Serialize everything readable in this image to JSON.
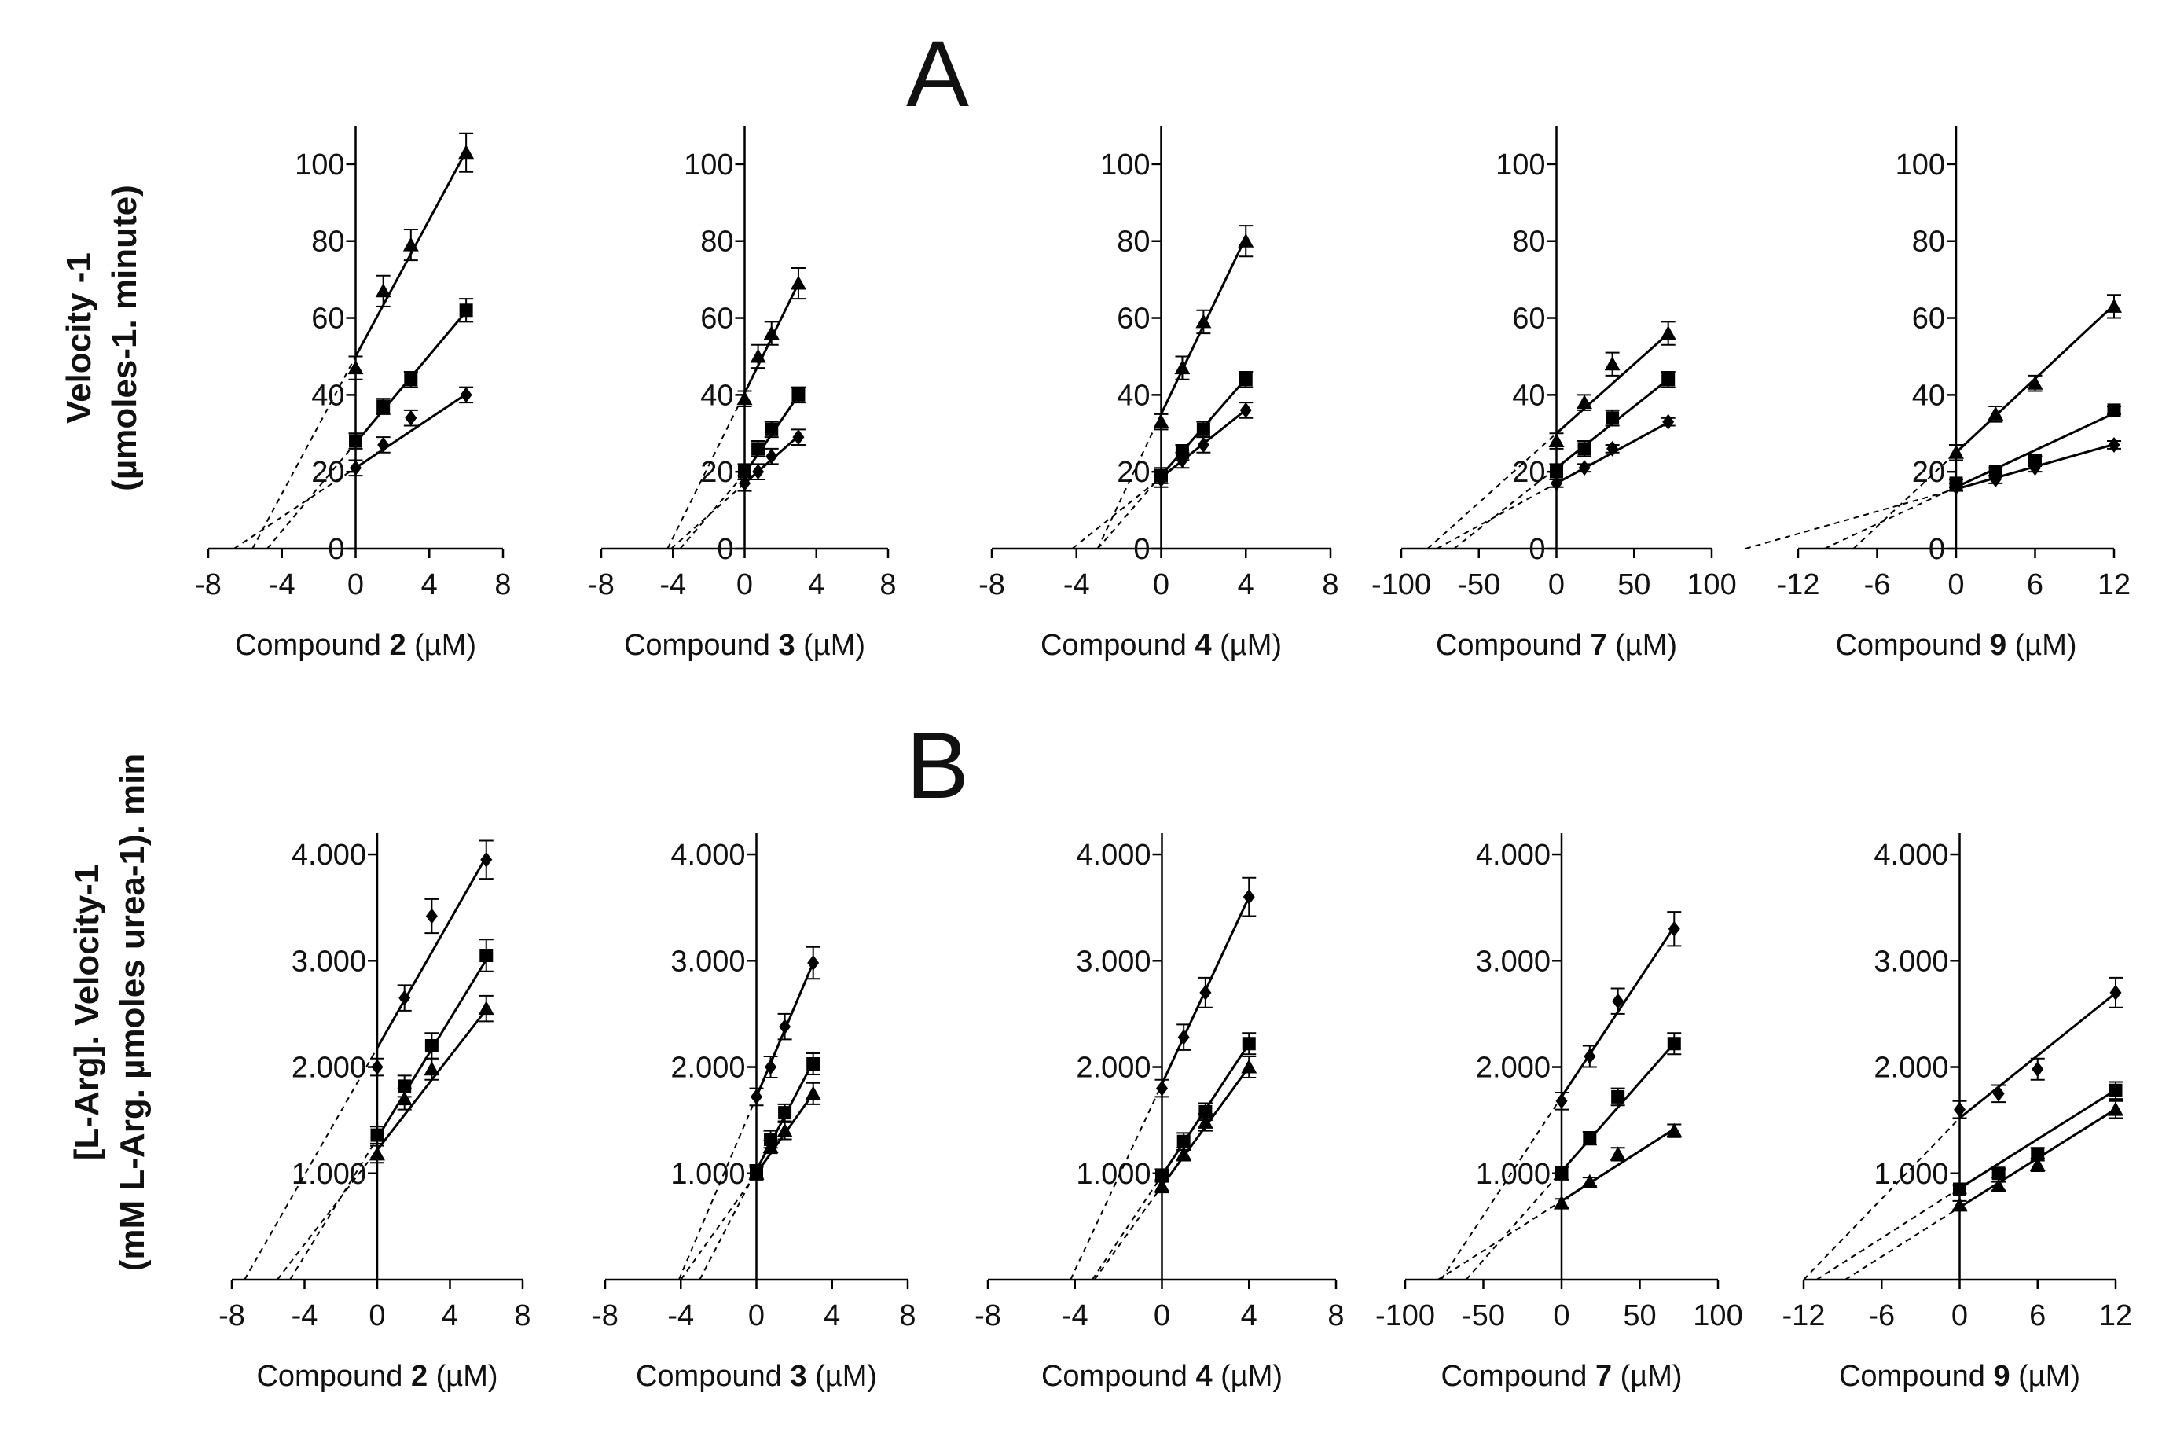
{
  "panels": {
    "A": {
      "letter": "A",
      "ylabel_line1": "Velocity -1",
      "ylabel_line2": "(µmoles-1. minute)"
    },
    "B": {
      "letter": "B",
      "ylabel_line1": "[L-Arg]. Velocity-1",
      "ylabel_line2": "(mM L-Arg. µmoles urea-1). min"
    }
  },
  "chart_data": [
    {
      "type": "line",
      "panel": "A",
      "title": "",
      "xlabel": {
        "prefix": "Compound ",
        "num": "2",
        "suffix": " (µM)"
      },
      "xlim": [
        -8,
        8
      ],
      "ylim": [
        0,
        110
      ],
      "xticks": [
        -8,
        -4,
        0,
        4,
        8
      ],
      "xtick_labels": [
        "-8",
        "-4",
        "0",
        "4",
        "8"
      ],
      "yticks": [
        0,
        20,
        40,
        60,
        80,
        100
      ],
      "ytick_labels": [
        "0",
        "20",
        "40",
        "60",
        "80",
        "100"
      ],
      "x": [
        0,
        1.5,
        3,
        6
      ],
      "series": [
        {
          "marker": "triangle",
          "values": [
            47,
            67,
            79,
            103
          ],
          "errors": [
            3,
            4,
            4,
            5
          ],
          "fit": [
            50,
            8.9
          ],
          "x_intercept": -5.6
        },
        {
          "marker": "square",
          "values": [
            28,
            37,
            44,
            62
          ],
          "errors": [
            2,
            2,
            2,
            3
          ],
          "fit": [
            27.5,
            5.7
          ],
          "x_intercept": -4.8
        },
        {
          "marker": "diamond",
          "values": [
            21,
            27,
            34,
            40
          ],
          "errors": [
            2,
            2,
            2,
            2
          ],
          "fit": [
            21,
            3.2
          ],
          "x_intercept": -6.6
        }
      ]
    },
    {
      "type": "line",
      "panel": "A",
      "title": "",
      "xlabel": {
        "prefix": "Compound ",
        "num": "3",
        "suffix": " (µM)"
      },
      "xlim": [
        -8,
        8
      ],
      "ylim": [
        0,
        110
      ],
      "xticks": [
        -8,
        -4,
        0,
        4,
        8
      ],
      "xtick_labels": [
        "-8",
        "-4",
        "0",
        "4",
        "8"
      ],
      "yticks": [
        0,
        20,
        40,
        60,
        80,
        100
      ],
      "ytick_labels": [
        "0",
        "20",
        "40",
        "60",
        "80",
        "100"
      ],
      "x": [
        0,
        0.75,
        1.5,
        3
      ],
      "series": [
        {
          "marker": "triangle",
          "values": [
            39,
            50,
            56,
            69
          ],
          "errors": [
            2,
            3,
            3,
            4
          ],
          "fit": [
            40.5,
            9.5
          ],
          "x_intercept": -4.3
        },
        {
          "marker": "square",
          "values": [
            20,
            26,
            31,
            40
          ],
          "errors": [
            2,
            2,
            2,
            2
          ],
          "fit": [
            19.5,
            6.8
          ],
          "x_intercept": -3.6
        },
        {
          "marker": "diamond",
          "values": [
            17,
            20,
            24,
            29
          ],
          "errors": [
            2,
            2,
            2,
            2
          ],
          "fit": [
            17,
            4.1
          ],
          "x_intercept": -4.1
        }
      ]
    },
    {
      "type": "line",
      "panel": "A",
      "title": "",
      "xlabel": {
        "prefix": "Compound ",
        "num": "4",
        "suffix": " (µM)"
      },
      "xlim": [
        -8,
        8
      ],
      "ylim": [
        0,
        110
      ],
      "xticks": [
        -8,
        -4,
        0,
        4,
        8
      ],
      "xtick_labels": [
        "-8",
        "-4",
        "0",
        "4",
        "8"
      ],
      "yticks": [
        0,
        20,
        40,
        60,
        80,
        100
      ],
      "ytick_labels": [
        "0",
        "20",
        "40",
        "60",
        "80",
        "100"
      ],
      "x": [
        0,
        1,
        2,
        4
      ],
      "series": [
        {
          "marker": "triangle",
          "values": [
            33,
            47,
            59,
            80
          ],
          "errors": [
            2,
            3,
            3,
            4
          ],
          "fit": [
            35,
            11.5
          ],
          "x_intercept": -3.0
        },
        {
          "marker": "square",
          "values": [
            19,
            25,
            31,
            44
          ],
          "errors": [
            2,
            2,
            2,
            2
          ],
          "fit": [
            19,
            6.3
          ],
          "x_intercept": -3.0
        },
        {
          "marker": "diamond",
          "values": [
            18,
            23,
            27,
            36
          ],
          "errors": [
            2,
            2,
            2,
            2
          ],
          "fit": [
            18.5,
            4.4
          ],
          "x_intercept": -4.2
        }
      ]
    },
    {
      "type": "line",
      "panel": "A",
      "title": "",
      "xlabel": {
        "prefix": "Compound ",
        "num": "7",
        "suffix": " (µM)"
      },
      "xlim": [
        -100,
        100
      ],
      "ylim": [
        0,
        110
      ],
      "xticks": [
        -100,
        -50,
        0,
        50,
        100
      ],
      "xtick_labels": [
        "-100",
        "-50",
        "0",
        "50",
        "100"
      ],
      "yticks": [
        0,
        20,
        40,
        60,
        80,
        100
      ],
      "ytick_labels": [
        "0",
        "20",
        "40",
        "60",
        "80",
        "100"
      ],
      "x": [
        0,
        18,
        36,
        72
      ],
      "series": [
        {
          "marker": "triangle",
          "values": [
            28,
            38,
            48,
            56
          ],
          "errors": [
            2,
            2,
            3,
            3
          ],
          "fit": [
            30,
            0.36
          ],
          "x_intercept": -83
        },
        {
          "marker": "square",
          "values": [
            20,
            26,
            34,
            44
          ],
          "errors": [
            2,
            2,
            2,
            2
          ],
          "fit": [
            21,
            0.32
          ],
          "x_intercept": -66
        },
        {
          "marker": "diamond",
          "values": [
            17,
            21,
            26,
            33
          ],
          "errors": [
            1,
            1,
            1,
            1
          ],
          "fit": [
            17,
            0.22
          ],
          "x_intercept": -77
        }
      ]
    },
    {
      "type": "line",
      "panel": "A",
      "title": "",
      "xlabel": {
        "prefix": "Compound ",
        "num": "9",
        "suffix": " (µM)"
      },
      "xlim": [
        -12,
        12
      ],
      "ylim": [
        0,
        110
      ],
      "xticks": [
        -12,
        -6,
        0,
        6,
        12
      ],
      "xtick_labels": [
        "-12",
        "-6",
        "0",
        "6",
        "12"
      ],
      "yticks": [
        0,
        20,
        40,
        60,
        80,
        100
      ],
      "ytick_labels": [
        "0",
        "20",
        "40",
        "60",
        "80",
        "100"
      ],
      "x": [
        0,
        3,
        6,
        12
      ],
      "series": [
        {
          "marker": "triangle",
          "values": [
            25,
            35,
            43,
            63
          ],
          "errors": [
            2,
            2,
            2,
            3
          ],
          "fit": [
            25,
            3.2
          ],
          "x_intercept": -7.8
        },
        {
          "marker": "square",
          "values": [
            17,
            20,
            23,
            36
          ],
          "errors": [
            1,
            1,
            1,
            1
          ],
          "fit": [
            16,
            1.6
          ],
          "x_intercept": -10
        },
        {
          "marker": "diamond",
          "values": [
            16,
            18,
            21,
            27
          ],
          "errors": [
            1,
            1,
            1,
            1
          ],
          "fit": [
            15.5,
            0.97
          ],
          "x_intercept": -16
        }
      ]
    },
    {
      "type": "line",
      "panel": "B",
      "title": "",
      "xlabel": {
        "prefix": "Compound ",
        "num": "2",
        "suffix": " (µM)"
      },
      "xlim": [
        -8,
        8
      ],
      "ylim": [
        0,
        4.2
      ],
      "xticks": [
        -8,
        -4,
        0,
        4,
        8
      ],
      "xtick_labels": [
        "-8",
        "-4",
        "0",
        "4",
        "8"
      ],
      "yticks": [
        1,
        2,
        3,
        4
      ],
      "ytick_labels": [
        "1.000",
        "2.000",
        "3.000",
        "4.000"
      ],
      "x": [
        0,
        1.5,
        3,
        6
      ],
      "series": [
        {
          "marker": "diamond",
          "values": [
            2.0,
            2.65,
            3.42,
            3.95
          ],
          "errors": [
            0.08,
            0.12,
            0.16,
            0.18
          ],
          "fit": [
            2.18,
            0.3
          ],
          "x_intercept": -7.3
        },
        {
          "marker": "square",
          "values": [
            1.36,
            1.82,
            2.2,
            3.05
          ],
          "errors": [
            0.08,
            0.1,
            0.12,
            0.15
          ],
          "fit": [
            1.33,
            0.28
          ],
          "x_intercept": -4.8
        },
        {
          "marker": "triangle",
          "values": [
            1.18,
            1.7,
            1.98,
            2.55
          ],
          "errors": [
            0.08,
            0.1,
            0.1,
            0.12
          ],
          "fit": [
            1.22,
            0.22
          ],
          "x_intercept": -5.5
        }
      ]
    },
    {
      "type": "line",
      "panel": "B",
      "title": "",
      "xlabel": {
        "prefix": "Compound ",
        "num": "3",
        "suffix": " (µM)"
      },
      "xlim": [
        -8,
        8
      ],
      "ylim": [
        0,
        4.2
      ],
      "xticks": [
        -8,
        -4,
        0,
        4,
        8
      ],
      "xtick_labels": [
        "-8",
        "-4",
        "0",
        "4",
        "8"
      ],
      "yticks": [
        1,
        2,
        3,
        4
      ],
      "ytick_labels": [
        "1.000",
        "2.000",
        "3.000",
        "4.000"
      ],
      "x": [
        0,
        0.75,
        1.5,
        3
      ],
      "series": [
        {
          "marker": "diamond",
          "values": [
            1.72,
            2.0,
            2.38,
            2.98
          ],
          "errors": [
            0.08,
            0.1,
            0.12,
            0.15
          ],
          "fit": [
            1.72,
            0.42
          ],
          "x_intercept": -4.1
        },
        {
          "marker": "square",
          "values": [
            1.02,
            1.32,
            1.57,
            2.03
          ],
          "errors": [
            0.06,
            0.08,
            0.08,
            0.1
          ],
          "fit": [
            1.03,
            0.34
          ],
          "x_intercept": -3.0
        },
        {
          "marker": "triangle",
          "values": [
            1.0,
            1.25,
            1.4,
            1.75
          ],
          "errors": [
            0.06,
            0.06,
            0.08,
            0.1
          ],
          "fit": [
            1.0,
            0.25
          ],
          "x_intercept": -4.0
        }
      ]
    },
    {
      "type": "line",
      "panel": "B",
      "title": "",
      "xlabel": {
        "prefix": "Compound ",
        "num": "4",
        "suffix": " (µM)"
      },
      "xlim": [
        -8,
        8
      ],
      "ylim": [
        0,
        4.2
      ],
      "xticks": [
        -8,
        -4,
        0,
        4,
        8
      ],
      "xtick_labels": [
        "-8",
        "-4",
        "0",
        "4",
        "8"
      ],
      "yticks": [
        1,
        2,
        3,
        4
      ],
      "ytick_labels": [
        "1.000",
        "2.000",
        "3.000",
        "4.000"
      ],
      "x": [
        0,
        1,
        2,
        4
      ],
      "series": [
        {
          "marker": "diamond",
          "values": [
            1.8,
            2.28,
            2.7,
            3.6
          ],
          "errors": [
            0.08,
            0.12,
            0.14,
            0.18
          ],
          "fit": [
            1.84,
            0.44
          ],
          "x_intercept": -4.2
        },
        {
          "marker": "square",
          "values": [
            0.98,
            1.3,
            1.58,
            2.22
          ],
          "errors": [
            0.06,
            0.08,
            0.08,
            0.1
          ],
          "fit": [
            0.98,
            0.31
          ],
          "x_intercept": -3.2
        },
        {
          "marker": "triangle",
          "values": [
            0.88,
            1.18,
            1.48,
            2.0
          ],
          "errors": [
            0.06,
            0.06,
            0.08,
            0.1
          ],
          "fit": [
            0.88,
            0.28
          ],
          "x_intercept": -3.1
        }
      ]
    },
    {
      "type": "line",
      "panel": "B",
      "title": "",
      "xlabel": {
        "prefix": "Compound ",
        "num": "7",
        "suffix": " (µM)"
      },
      "xlim": [
        -100,
        100
      ],
      "ylim": [
        0,
        4.2
      ],
      "xticks": [
        -100,
        -50,
        0,
        50,
        100
      ],
      "xtick_labels": [
        "-100",
        "-50",
        "0",
        "50",
        "100"
      ],
      "yticks": [
        1,
        2,
        3,
        4
      ],
      "ytick_labels": [
        "1.000",
        "2.000",
        "3.000",
        "4.000"
      ],
      "x": [
        0,
        18,
        36,
        72
      ],
      "series": [
        {
          "marker": "diamond",
          "values": [
            1.68,
            2.1,
            2.62,
            3.3
          ],
          "errors": [
            0.08,
            0.1,
            0.12,
            0.16
          ],
          "fit": [
            1.72,
            0.0222
          ],
          "x_intercept": -77
        },
        {
          "marker": "square",
          "values": [
            1.0,
            1.33,
            1.72,
            2.22
          ],
          "errors": [
            0.06,
            0.06,
            0.08,
            0.1
          ],
          "fit": [
            1.02,
            0.0167
          ],
          "x_intercept": -61
        },
        {
          "marker": "triangle",
          "values": [
            0.72,
            0.92,
            1.18,
            1.4
          ],
          "errors": [
            0.04,
            0.04,
            0.06,
            0.06
          ],
          "fit": [
            0.74,
            0.0094
          ],
          "x_intercept": -79
        }
      ]
    },
    {
      "type": "line",
      "panel": "B",
      "title": "",
      "xlabel": {
        "prefix": "Compound ",
        "num": "9",
        "suffix": " (µM)"
      },
      "xlim": [
        -12,
        12
      ],
      "ylim": [
        0,
        4.2
      ],
      "xticks": [
        -12,
        -6,
        0,
        6,
        12
      ],
      "xtick_labels": [
        "-12",
        "-6",
        "0",
        "6",
        "12"
      ],
      "yticks": [
        1,
        2,
        3,
        4
      ],
      "ytick_labels": [
        "1.000",
        "2.000",
        "3.000",
        "4.000"
      ],
      "x": [
        0,
        3,
        6,
        12
      ],
      "series": [
        {
          "marker": "diamond",
          "values": [
            1.6,
            1.75,
            1.98,
            2.7
          ],
          "errors": [
            0.08,
            0.08,
            0.1,
            0.14
          ],
          "fit": [
            1.52,
            0.098
          ],
          "x_intercept": -12
        },
        {
          "marker": "square",
          "values": [
            0.85,
            1.0,
            1.18,
            1.78
          ],
          "errors": [
            0.04,
            0.04,
            0.06,
            0.08
          ],
          "fit": [
            0.86,
            0.077
          ],
          "x_intercept": -11
        },
        {
          "marker": "triangle",
          "values": [
            0.7,
            0.88,
            1.08,
            1.6
          ],
          "errors": [
            0.04,
            0.04,
            0.06,
            0.08
          ],
          "fit": [
            0.68,
            0.077
          ],
          "x_intercept": -8.8
        }
      ]
    }
  ]
}
